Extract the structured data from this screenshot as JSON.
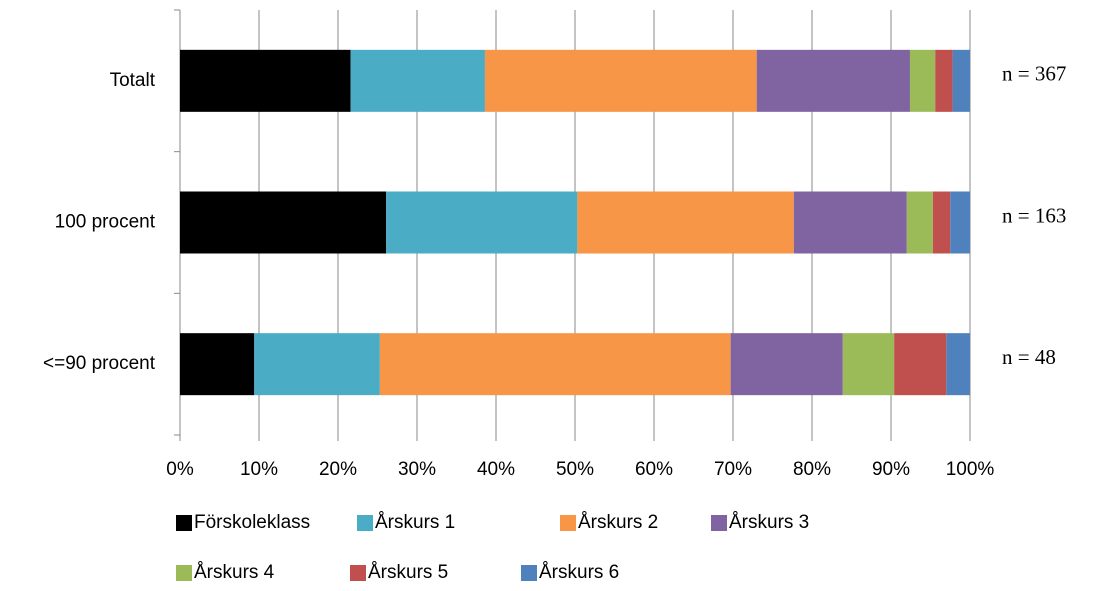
{
  "chart_data": {
    "type": "stacked_barh",
    "categories": [
      "Totalt",
      "100 procent",
      "<=90 procent"
    ],
    "series": [
      {
        "name": "Förskoleklass",
        "color": "#000000",
        "values": [
          21.6,
          26.1,
          9.4
        ]
      },
      {
        "name": "Årskurs 1",
        "color": "#4bacc6",
        "values": [
          17.0,
          24.2,
          15.9
        ]
      },
      {
        "name": "Årskurs 2",
        "color": "#f79646",
        "values": [
          34.4,
          27.4,
          44.4
        ]
      },
      {
        "name": "Årskurs 3",
        "color": "#8064a2",
        "values": [
          19.4,
          14.3,
          14.2
        ]
      },
      {
        "name": "Årskurs 4",
        "color": "#9bbb59",
        "values": [
          3.2,
          3.3,
          6.5
        ]
      },
      {
        "name": "Årskurs 5",
        "color": "#c0504d",
        "values": [
          2.2,
          2.2,
          6.6
        ]
      },
      {
        "name": "Årskurs 6",
        "color": "#4f81bd",
        "values": [
          2.2,
          2.5,
          3.0
        ]
      }
    ],
    "annotations": [
      "n = 367",
      "n = 163",
      "n = 48"
    ],
    "xlim": [
      0,
      100
    ],
    "xticks": [
      {
        "value": 0,
        "label": "0%"
      },
      {
        "value": 10,
        "label": "10%"
      },
      {
        "value": 20,
        "label": "20%"
      },
      {
        "value": 30,
        "label": "30%"
      },
      {
        "value": 40,
        "label": "40%"
      },
      {
        "value": 50,
        "label": "50%"
      },
      {
        "value": 60,
        "label": "60%"
      },
      {
        "value": 70,
        "label": "70%"
      },
      {
        "value": 80,
        "label": "80%"
      },
      {
        "value": 90,
        "label": "90%"
      },
      {
        "value": 100,
        "label": "100%"
      }
    ],
    "grid": true
  }
}
